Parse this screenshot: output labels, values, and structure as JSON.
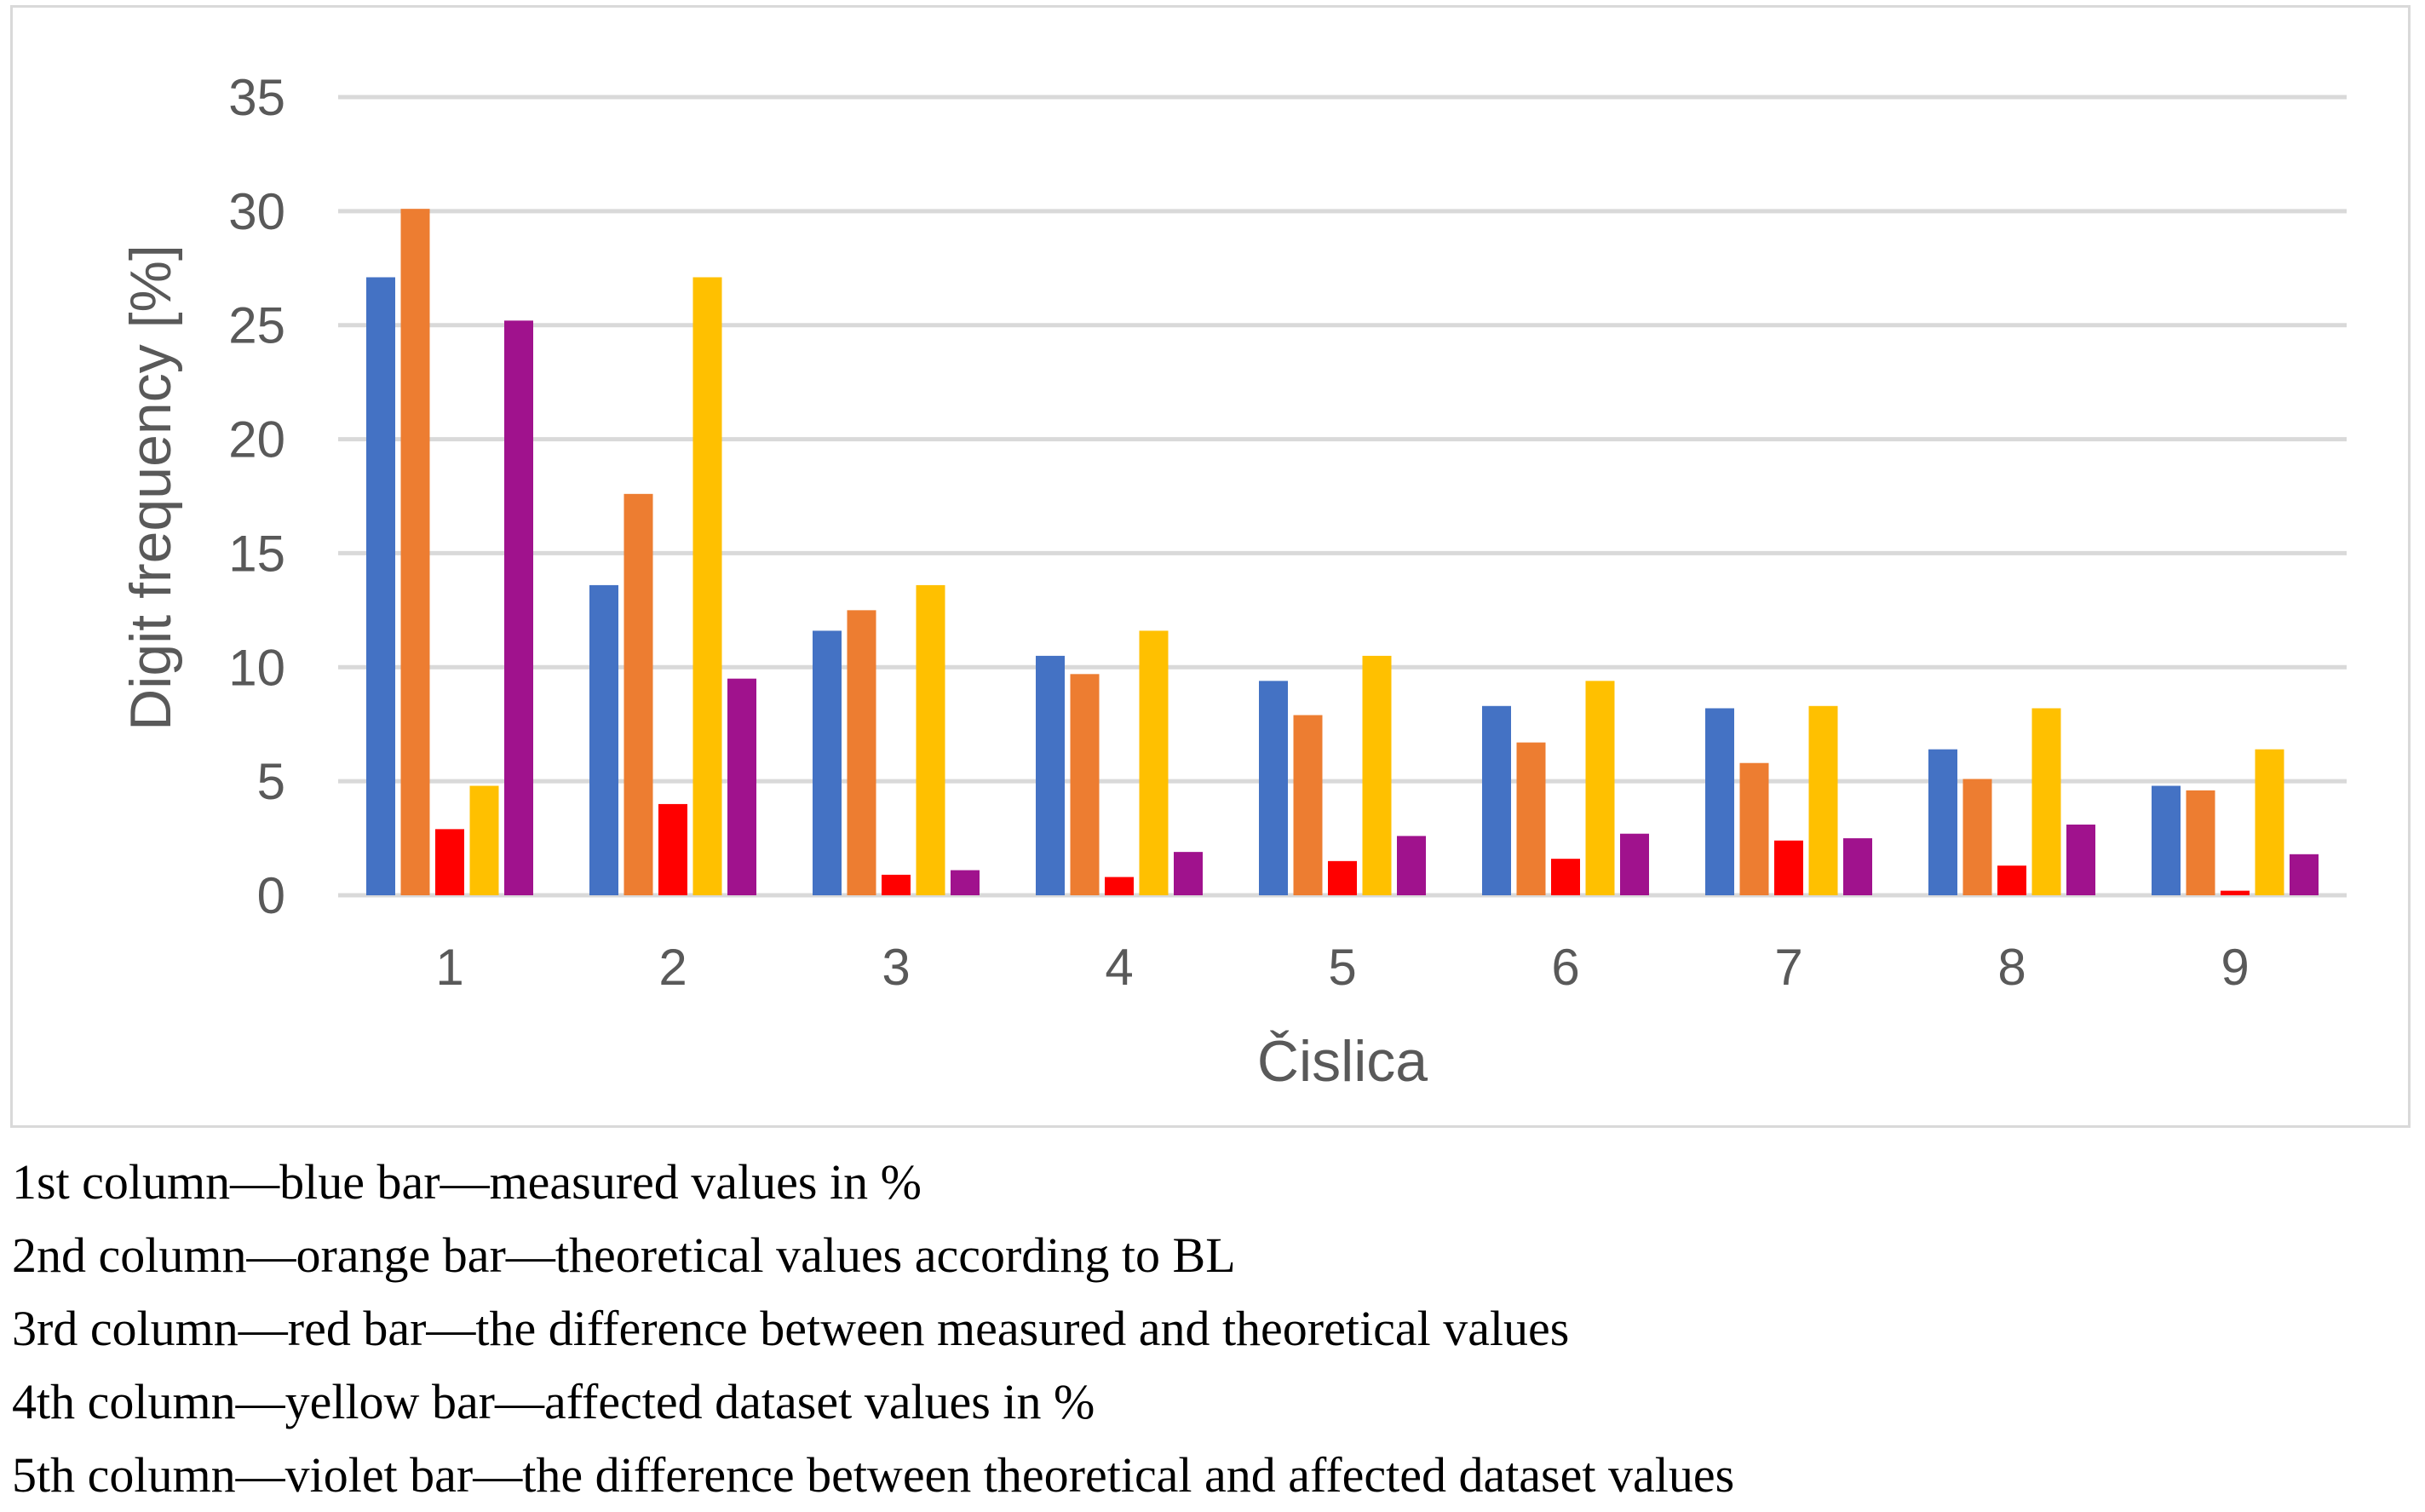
{
  "chart_data": {
    "type": "bar",
    "xlabel": "Čislica",
    "ylabel": "Digit frequency [%]",
    "ylim": [
      0,
      35
    ],
    "yticks": [
      0,
      5,
      10,
      15,
      20,
      25,
      30,
      35
    ],
    "grid": true,
    "categories": [
      "1",
      "2",
      "3",
      "4",
      "5",
      "6",
      "7",
      "8",
      "9"
    ],
    "series": [
      {
        "name": "measured values in %",
        "color": "#4472c4",
        "values": [
          27.1,
          13.6,
          11.6,
          10.5,
          9.4,
          8.3,
          8.2,
          6.4,
          4.8
        ]
      },
      {
        "name": "theoretical values according to BL",
        "color": "#ed7d31",
        "values": [
          30.1,
          17.6,
          12.5,
          9.7,
          7.9,
          6.7,
          5.8,
          5.1,
          4.6
        ]
      },
      {
        "name": "the difference between measured and theoretical values",
        "color": "#ff0000",
        "values": [
          2.9,
          4.0,
          0.9,
          0.8,
          1.5,
          1.6,
          2.4,
          1.3,
          0.2
        ]
      },
      {
        "name": "affected dataset values in %",
        "color": "#ffc000",
        "values": [
          4.8,
          27.1,
          13.6,
          11.6,
          10.5,
          9.4,
          8.3,
          8.2,
          6.4
        ]
      },
      {
        "name": "the difference between theoretical and affected dataset values",
        "color": "#a0128d",
        "values": [
          25.2,
          9.5,
          1.1,
          1.9,
          2.6,
          2.7,
          2.5,
          3.1,
          1.8
        ]
      }
    ]
  },
  "caption": [
    "1st column—blue bar—measured values in %",
    "2nd column—orange bar—theoretical values according to BL",
    "3rd column—red bar—the difference between measured and theoretical values",
    "4th column—yellow bar—affected dataset values in %",
    "5th column—violet bar—the difference between theoretical and affected dataset values"
  ]
}
